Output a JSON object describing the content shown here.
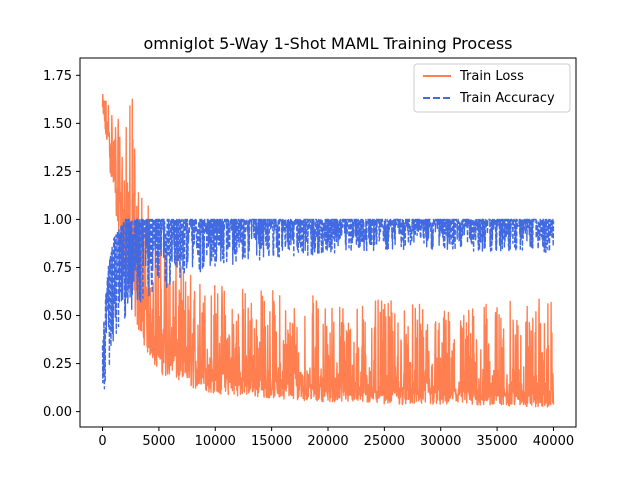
{
  "chart_data": {
    "type": "line",
    "title": "omniglot 5-Way 1-Shot MAML Training Process",
    "xlabel": "",
    "ylabel": "",
    "xlim": [
      -2000,
      42000
    ],
    "ylim": [
      -0.08,
      1.84
    ],
    "xticks": [
      0,
      5000,
      10000,
      15000,
      20000,
      25000,
      30000,
      35000,
      40000
    ],
    "xtick_labels": [
      "0",
      "5000",
      "10000",
      "15000",
      "20000",
      "25000",
      "30000",
      "35000",
      "40000"
    ],
    "yticks": [
      0.0,
      0.25,
      0.5,
      0.75,
      1.0,
      1.25,
      1.5,
      1.75
    ],
    "ytick_labels": [
      "0.00",
      "0.25",
      "0.50",
      "0.75",
      "1.00",
      "1.25",
      "1.50",
      "1.75"
    ],
    "legend_position": "top-right",
    "series": [
      {
        "name": "Train Loss",
        "color": "#ff7f50",
        "style": "solid",
        "x": [
          0,
          500,
          1000,
          1500,
          2000,
          2500,
          3000,
          4000,
          5000,
          7500,
          10000,
          15000,
          20000,
          25000,
          30000,
          35000,
          40000
        ],
        "mean": [
          1.58,
          1.45,
          1.3,
          1.1,
          0.95,
          0.8,
          0.65,
          0.5,
          0.38,
          0.26,
          0.2,
          0.16,
          0.13,
          0.12,
          0.11,
          0.1,
          0.1
        ],
        "low": [
          1.5,
          1.35,
          1.05,
          0.85,
          0.7,
          0.55,
          0.45,
          0.3,
          0.2,
          0.13,
          0.09,
          0.07,
          0.05,
          0.04,
          0.03,
          0.03,
          0.02
        ],
        "high": [
          1.65,
          1.66,
          1.6,
          1.5,
          1.45,
          1.77,
          1.3,
          1.1,
          0.95,
          0.75,
          0.7,
          0.65,
          0.6,
          0.58,
          0.55,
          0.57,
          0.6
        ]
      },
      {
        "name": "Train Accuracy",
        "color": "#4169e1",
        "style": "dashed",
        "x": [
          0,
          500,
          1000,
          1500,
          2000,
          2500,
          3000,
          4000,
          5000,
          7500,
          10000,
          15000,
          20000,
          25000,
          30000,
          35000,
          40000
        ],
        "mean": [
          0.2,
          0.5,
          0.62,
          0.7,
          0.75,
          0.8,
          0.84,
          0.88,
          0.9,
          0.92,
          0.94,
          0.95,
          0.95,
          0.96,
          0.96,
          0.96,
          0.96
        ],
        "low": [
          0.06,
          0.2,
          0.3,
          0.4,
          0.45,
          0.5,
          0.55,
          0.6,
          0.62,
          0.7,
          0.75,
          0.8,
          0.82,
          0.84,
          0.84,
          0.83,
          0.82
        ],
        "high": [
          0.4,
          0.75,
          0.9,
          0.95,
          1.0,
          1.0,
          1.0,
          1.0,
          1.0,
          1.0,
          1.0,
          1.0,
          1.0,
          1.0,
          1.0,
          1.0,
          1.0
        ]
      }
    ]
  }
}
